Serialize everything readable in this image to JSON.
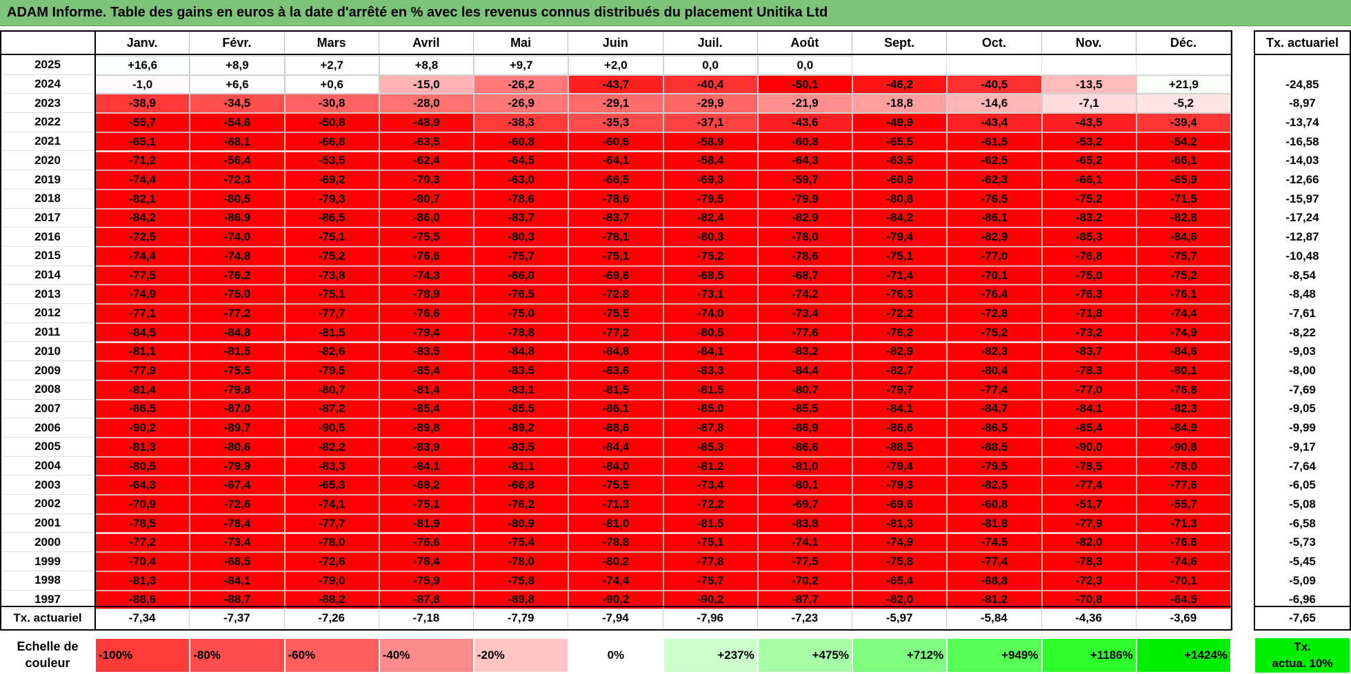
{
  "chart_data": {
    "type": "heatmap",
    "title": "ADAM Informe. Table des gains en euros à la date d'arrêté en % avec les revenus connus distribués du placement Unitika Ltd",
    "columns": [
      "Janv.",
      "Févr.",
      "Mars",
      "Avril",
      "Mai",
      "Juin",
      "Juil.",
      "Août",
      "Sept.",
      "Oct.",
      "Nov.",
      "Déc."
    ],
    "annual_header": "Tx. actuariel",
    "rows": [
      {
        "year": "2025",
        "values": [
          "+16,6",
          "+8,9",
          "+2,7",
          "+8,8",
          "+9,7",
          "+2,0",
          "0,0",
          "0,0",
          "",
          "",
          "",
          ""
        ],
        "annual": ""
      },
      {
        "year": "2024",
        "values": [
          "-1,0",
          "+6,6",
          "+0,6",
          "-15,0",
          "-26,2",
          "-43,7",
          "-40,4",
          "-50,1",
          "-46,2",
          "-40,5",
          "-13,5",
          "+21,9"
        ],
        "annual": "-24,85"
      },
      {
        "year": "2023",
        "values": [
          "-38,9",
          "-34,5",
          "-30,8",
          "-28,0",
          "-26,9",
          "-29,1",
          "-29,9",
          "-21,9",
          "-18,8",
          "-14,6",
          "-7,1",
          "-5,2"
        ],
        "annual": "-8,97"
      },
      {
        "year": "2022",
        "values": [
          "-55,7",
          "-54,6",
          "-50,8",
          "-48,9",
          "-38,3",
          "-35,3",
          "-37,1",
          "-43,6",
          "-49,9",
          "-43,4",
          "-43,5",
          "-39,4"
        ],
        "annual": "-13,74"
      },
      {
        "year": "2021",
        "values": [
          "-65,1",
          "-68,1",
          "-66,8",
          "-63,5",
          "-60,8",
          "-60,6",
          "-58,9",
          "-60,8",
          "-65,5",
          "-61,5",
          "-53,2",
          "-54,2"
        ],
        "annual": "-16,58"
      },
      {
        "year": "2020",
        "values": [
          "-71,2",
          "-56,4",
          "-53,5",
          "-62,4",
          "-64,5",
          "-64,1",
          "-58,4",
          "-64,3",
          "-63,5",
          "-62,5",
          "-65,2",
          "-66,1"
        ],
        "annual": "-14,03"
      },
      {
        "year": "2019",
        "values": [
          "-74,4",
          "-72,3",
          "-69,2",
          "-70,3",
          "-63,0",
          "-66,5",
          "-69,3",
          "-59,7",
          "-60,9",
          "-62,3",
          "-66,1",
          "-65,9"
        ],
        "annual": "-12,66"
      },
      {
        "year": "2018",
        "values": [
          "-82,1",
          "-80,5",
          "-79,3",
          "-80,7",
          "-78,6",
          "-78,6",
          "-79,5",
          "-79,9",
          "-80,8",
          "-76,5",
          "-75,2",
          "-71,5"
        ],
        "annual": "-15,97"
      },
      {
        "year": "2017",
        "values": [
          "-84,2",
          "-86,9",
          "-86,5",
          "-86,0",
          "-83,7",
          "-83,7",
          "-82,4",
          "-82,9",
          "-84,2",
          "-86,1",
          "-83,2",
          "-82,8"
        ],
        "annual": "-17,24"
      },
      {
        "year": "2016",
        "values": [
          "-72,5",
          "-74,0",
          "-75,1",
          "-75,5",
          "-80,3",
          "-78,1",
          "-80,3",
          "-78,0",
          "-79,4",
          "-82,9",
          "-85,3",
          "-84,6"
        ],
        "annual": "-12,87"
      },
      {
        "year": "2015",
        "values": [
          "-74,4",
          "-74,8",
          "-75,2",
          "-76,6",
          "-75,7",
          "-75,1",
          "-75,2",
          "-78,6",
          "-75,1",
          "-77,0",
          "-76,8",
          "-75,7"
        ],
        "annual": "-10,48"
      },
      {
        "year": "2014",
        "values": [
          "-77,5",
          "-76,2",
          "-73,8",
          "-74,3",
          "-66,0",
          "-69,6",
          "-68,5",
          "-68,7",
          "-71,4",
          "-70,1",
          "-75,0",
          "-75,2"
        ],
        "annual": "-8,54"
      },
      {
        "year": "2013",
        "values": [
          "-74,9",
          "-75,0",
          "-75,1",
          "-78,9",
          "-76,5",
          "-72,8",
          "-73,1",
          "-74,2",
          "-76,3",
          "-76,4",
          "-76,3",
          "-76,1"
        ],
        "annual": "-8,48"
      },
      {
        "year": "2012",
        "values": [
          "-77,1",
          "-77,2",
          "-77,7",
          "-76,6",
          "-75,0",
          "-75,5",
          "-74,0",
          "-73,4",
          "-72,2",
          "-72,8",
          "-71,8",
          "-74,4"
        ],
        "annual": "-7,61"
      },
      {
        "year": "2011",
        "values": [
          "-84,5",
          "-84,8",
          "-81,5",
          "-79,4",
          "-78,8",
          "-77,2",
          "-80,5",
          "-77,6",
          "-76,2",
          "-75,2",
          "-73,2",
          "-74,9"
        ],
        "annual": "-8,22"
      },
      {
        "year": "2010",
        "values": [
          "-81,1",
          "-81,5",
          "-82,6",
          "-83,5",
          "-84,8",
          "-84,8",
          "-84,1",
          "-83,2",
          "-82,9",
          "-82,3",
          "-83,7",
          "-84,6"
        ],
        "annual": "-9,03"
      },
      {
        "year": "2009",
        "values": [
          "-77,9",
          "-75,5",
          "-79,5",
          "-85,4",
          "-83,5",
          "-83,6",
          "-83,3",
          "-84,4",
          "-82,7",
          "-80,4",
          "-78,3",
          "-80,1"
        ],
        "annual": "-8,00"
      },
      {
        "year": "2008",
        "values": [
          "-81,4",
          "-79,8",
          "-80,7",
          "-81,4",
          "-83,1",
          "-81,5",
          "-81,5",
          "-80,7",
          "-79,7",
          "-77,4",
          "-77,0",
          "-76,8"
        ],
        "annual": "-7,69"
      },
      {
        "year": "2007",
        "values": [
          "-86,5",
          "-87,0",
          "-87,2",
          "-85,4",
          "-85,5",
          "-86,1",
          "-85,0",
          "-85,5",
          "-84,1",
          "-84,7",
          "-84,1",
          "-82,3"
        ],
        "annual": "-9,05"
      },
      {
        "year": "2006",
        "values": [
          "-90,2",
          "-89,7",
          "-90,5",
          "-89,8",
          "-89,2",
          "-88,6",
          "-87,8",
          "-86,9",
          "-86,6",
          "-86,5",
          "-85,4",
          "-84,9"
        ],
        "annual": "-9,99"
      },
      {
        "year": "2005",
        "values": [
          "-81,3",
          "-80,6",
          "-82,2",
          "-83,9",
          "-83,5",
          "-84,4",
          "-85,3",
          "-86,6",
          "-88,5",
          "-88,5",
          "-90,0",
          "-90,8"
        ],
        "annual": "-9,17"
      },
      {
        "year": "2004",
        "values": [
          "-80,5",
          "-79,9",
          "-83,3",
          "-84,1",
          "-81,1",
          "-84,0",
          "-81,2",
          "-81,0",
          "-79,4",
          "-79,5",
          "-78,5",
          "-78,0"
        ],
        "annual": "-7,64"
      },
      {
        "year": "2003",
        "values": [
          "-64,3",
          "-67,4",
          "-65,3",
          "-68,2",
          "-66,8",
          "-75,5",
          "-73,4",
          "-80,1",
          "-79,3",
          "-82,5",
          "-77,4",
          "-77,6"
        ],
        "annual": "-6,05"
      },
      {
        "year": "2002",
        "values": [
          "-70,9",
          "-72,6",
          "-74,1",
          "-75,1",
          "-76,2",
          "-71,3",
          "-72,2",
          "-69,7",
          "-69,6",
          "-60,8",
          "-51,7",
          "-55,7"
        ],
        "annual": "-5,08"
      },
      {
        "year": "2001",
        "values": [
          "-78,5",
          "-78,4",
          "-77,7",
          "-81,9",
          "-80,9",
          "-81,0",
          "-81,5",
          "-83,8",
          "-81,3",
          "-81,8",
          "-77,9",
          "-71,3"
        ],
        "annual": "-6,58"
      },
      {
        "year": "2000",
        "values": [
          "-77,2",
          "-73,4",
          "-78,0",
          "-76,6",
          "-75,4",
          "-78,8",
          "-75,1",
          "-74,1",
          "-74,9",
          "-74,5",
          "-82,0",
          "-76,6"
        ],
        "annual": "-5,73"
      },
      {
        "year": "1999",
        "values": [
          "-70,4",
          "-68,5",
          "-72,6",
          "-78,4",
          "-78,0",
          "-80,2",
          "-77,8",
          "-77,5",
          "-75,8",
          "-77,4",
          "-78,3",
          "-74,6"
        ],
        "annual": "-5,45"
      },
      {
        "year": "1998",
        "values": [
          "-81,3",
          "-84,1",
          "-79,0",
          "-75,9",
          "-75,8",
          "-74,4",
          "-75,7",
          "-70,2",
          "-65,4",
          "-68,8",
          "-72,3",
          "-70,1"
        ],
        "annual": "-5,09"
      },
      {
        "year": "1997",
        "values": [
          "-88,6",
          "-88,7",
          "-88,2",
          "-87,8",
          "-89,8",
          "-90,2",
          "-90,2",
          "-87,7",
          "-82,0",
          "-81,2",
          "-70,8",
          "-64,5"
        ],
        "annual": "-6,96"
      }
    ],
    "footer": {
      "label": "Tx. actuariel",
      "values": [
        "-7,34",
        "-7,37",
        "-7,26",
        "-7,18",
        "-7,79",
        "-7,94",
        "-7,96",
        "-7,23",
        "-5,97",
        "-5,84",
        "-4,36",
        "-3,69"
      ],
      "total": "-7,65"
    }
  },
  "legend": {
    "title_line1": "Echelle de",
    "title_line2": "couleur",
    "items": [
      {
        "label": "-100%",
        "color": "#ff3b3b",
        "align": "left"
      },
      {
        "label": "-80%",
        "color": "#ff4c4c",
        "align": "left"
      },
      {
        "label": "-60%",
        "color": "#ff5f5f",
        "align": "left"
      },
      {
        "label": "-40%",
        "color": "#ff8c8c",
        "align": "left"
      },
      {
        "label": "-20%",
        "color": "#ffc4c4",
        "align": "left"
      },
      {
        "label": "0%",
        "color": "#ffffff",
        "align": "center"
      },
      {
        "label": "+237%",
        "color": "#ccffcc",
        "align": "right"
      },
      {
        "label": "+475%",
        "color": "#a6ffa6",
        "align": "right"
      },
      {
        "label": "+712%",
        "color": "#7dff7d",
        "align": "right"
      },
      {
        "label": "+949%",
        "color": "#55ff55",
        "align": "right"
      },
      {
        "label": "+1186%",
        "color": "#2cff2c",
        "align": "right"
      },
      {
        "label": "+1424%",
        "color": "#00ee00",
        "align": "right"
      }
    ],
    "side_box_line1": "Tx.",
    "side_box_line2": "actua. 10%",
    "side_box_color": "#00ee00"
  }
}
